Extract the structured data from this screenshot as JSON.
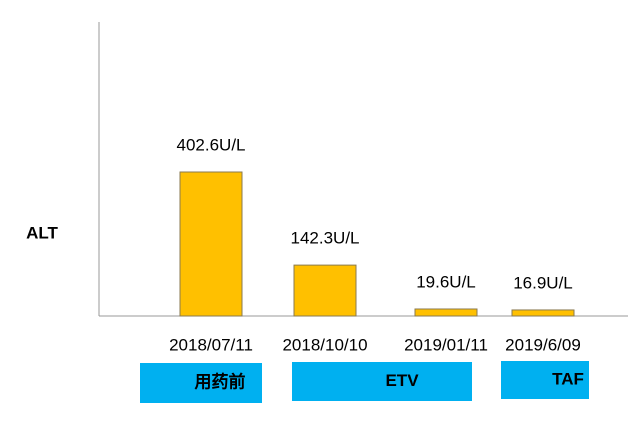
{
  "chart_data": {
    "type": "bar",
    "y_label": "ALT",
    "categories": [
      "2018/07/11",
      "2018/10/10",
      "2019/01/11",
      "2019/6/09"
    ],
    "values": [
      402.6,
      142.3,
      19.6,
      16.9
    ],
    "value_labels": [
      "402.6U/L",
      "142.3U/L",
      "19.6U/L",
      "16.9U/L"
    ],
    "color": "#FFC000",
    "phases": [
      "用药前",
      "ETV",
      "TAF"
    ],
    "phase_color": "#00B0F0"
  }
}
